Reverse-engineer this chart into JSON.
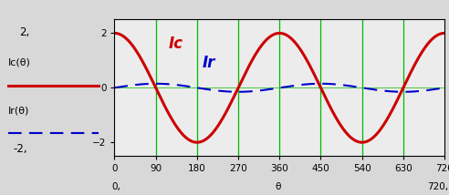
{
  "x_start": 0,
  "x_end": 720,
  "y_min": -2.5,
  "y_max": 2.5,
  "yticks": [
    -2,
    0,
    2
  ],
  "xticks": [
    0,
    90,
    180,
    270,
    360,
    450,
    540,
    630,
    720
  ],
  "ic_amplitude": 2.0,
  "ir_amplitude": 0.15,
  "vlines": [
    90,
    180,
    270,
    360,
    450,
    540,
    630
  ],
  "vline_color": "#00bb00",
  "ic_color": "#cc0000",
  "ir_color": "#0000cc",
  "bg_color": "#d8d8d8",
  "plot_bg_color": "#ececec",
  "legend_ic_label": "Ic(θ)",
  "legend_ir_label": "Ir(θ)",
  "ic_annotation": "Ic",
  "ir_annotation": "Ir",
  "xlabel_left": "0,",
  "xlabel_center": "θ",
  "xlabel_right": "720,",
  "ylabel_top": "2,",
  "ylabel_bottom": "-2,"
}
